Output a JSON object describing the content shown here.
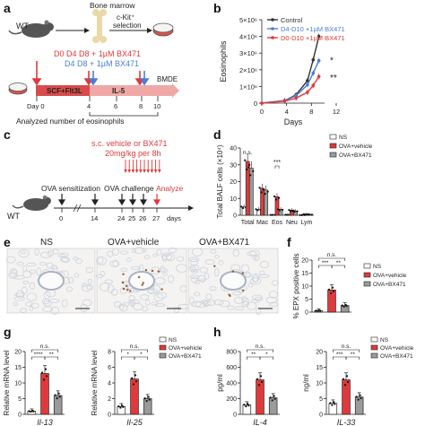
{
  "panels": {
    "a": {
      "label": "a",
      "mouse": "WT",
      "bone_marrow": "Bone marrow",
      "selection_line1": "c-Kit⁺",
      "selection_line2": "selection",
      "treatment_red": "D0 D4 D8 + 1µM BX471",
      "treatment_blue": "D4 D8 + 1µM BX471",
      "phase1": "SCF+Flt3L",
      "phase2": "IL-5",
      "bmde": "BMDE",
      "days": [
        "Day 0",
        "4",
        "6",
        "8",
        "10"
      ],
      "footer": "Analyzed number of eosinophils"
    },
    "b": {
      "label": "b"
    },
    "c": {
      "label": "c",
      "mouse": "WT",
      "injection_line1": "s.c. vehicle or BX471",
      "injection_line2": "20mg/kg per 8h",
      "sensitization": "OVA sensitization",
      "challenge": "OVA challenge",
      "analyze": "Analyze",
      "days": [
        "0",
        "14",
        "24",
        "25",
        "26",
        "27",
        "days"
      ]
    },
    "d": {
      "label": "d"
    },
    "e": {
      "label": "e",
      "titles": [
        "NS",
        "OVA+vehicle",
        "OVA+BX471"
      ],
      "colors": {
        "tissue": "#cdd3dc",
        "stain": "#9a5a35"
      }
    },
    "f": {
      "label": "f"
    },
    "g": {
      "label": "g"
    },
    "h": {
      "label": "h"
    }
  },
  "chart_data": [
    {
      "panel": "b",
      "type": "line",
      "xlabel": "Days",
      "ylabel": "Eosinophils",
      "xlim": [
        0,
        11
      ],
      "ylim": [
        0,
        5000000
      ],
      "xticks": [
        "0",
        "4",
        "8",
        "12"
      ],
      "yticks": [
        "0",
        "1×10⁶",
        "2×10⁶",
        "3×10⁶",
        "4×10⁶",
        "5×10⁶"
      ],
      "legend_position": "top-left",
      "series": [
        {
          "name": "Control",
          "color": "#333333",
          "x": [
            0,
            4,
            6,
            8,
            9,
            10
          ],
          "y": [
            0,
            150000,
            500000,
            1350000,
            2600000,
            4000000
          ]
        },
        {
          "name": "D4-D10 +1µM BX471",
          "color": "#4a7fd4",
          "x": [
            0,
            4,
            6,
            8,
            9,
            10
          ],
          "y": [
            0,
            150000,
            450000,
            1100000,
            1800000,
            2550000
          ]
        },
        {
          "name": "D0-D10 +1µM BX471",
          "color": "#e0393b",
          "x": [
            0,
            4,
            6,
            8,
            9,
            10
          ],
          "y": [
            0,
            120000,
            300000,
            650000,
            1050000,
            1600000
          ]
        }
      ],
      "annotations": [
        "*",
        "**"
      ]
    },
    {
      "panel": "d",
      "type": "bar",
      "ylabel": "Total BALF cells (×10⁴)",
      "ylim": [
        0,
        40
      ],
      "yticks": [
        "0",
        "10",
        "20",
        "30",
        "40"
      ],
      "categories": [
        "Total",
        "Mac",
        "Eos",
        "Neu",
        "Lym"
      ],
      "series": [
        {
          "name": "NS",
          "color": "#ffffff",
          "values": [
            5,
            3.5,
            0.2,
            0.3,
            0.1
          ]
        },
        {
          "name": "OVA+vehicle",
          "color": "#e0393b",
          "values": [
            32,
            16,
            11,
            3,
            0.6
          ]
        },
        {
          "name": "OVA+BX471",
          "color": "#9b9b9b",
          "values": [
            28,
            15,
            3.5,
            2.5,
            0.4
          ]
        }
      ],
      "annotations": [
        "n.s.",
        "***"
      ],
      "legend_position": "top-right"
    },
    {
      "panel": "f",
      "type": "bar",
      "ylabel": "% EPX positive cells",
      "ylim": [
        0,
        20
      ],
      "yticks": [
        "0",
        "5",
        "10",
        "15",
        "20"
      ],
      "categories": [
        "NS",
        "OVA+vehicle",
        "OVA+BX471"
      ],
      "values": [
        0.5,
        8.5,
        2.5
      ],
      "colors": [
        "#ffffff",
        "#e0393b",
        "#9b9b9b"
      ],
      "annotations": [
        "n.s.",
        "***",
        "**"
      ],
      "legend_position": "right"
    },
    {
      "panel": "g1",
      "type": "bar",
      "ylabel": "Relative mRNA level",
      "xlabel": "Il-13",
      "ylim": [
        0,
        20
      ],
      "yticks": [
        "0",
        "5",
        "10",
        "15",
        "20"
      ],
      "categories": [
        "NS",
        "OVA+vehicle",
        "OVA+BX471"
      ],
      "values": [
        1,
        13,
        6
      ],
      "colors": [
        "#ffffff",
        "#e0393b",
        "#9b9b9b"
      ],
      "annotations": [
        "n.s.",
        "****",
        "**"
      ]
    },
    {
      "panel": "g2",
      "type": "bar",
      "ylabel": "Relative mRNA level",
      "xlabel": "Il-25",
      "ylim": [
        0,
        8
      ],
      "yticks": [
        "0",
        "2",
        "4",
        "6",
        "8"
      ],
      "categories": [
        "NS",
        "OVA+vehicle",
        "OVA+BX471"
      ],
      "values": [
        1,
        4.5,
        2
      ],
      "colors": [
        "#ffffff",
        "#e0393b",
        "#9b9b9b"
      ],
      "annotations": [
        "n.s.",
        "*",
        "*"
      ],
      "legend": [
        "NS",
        "OVA+vehicle",
        "OVA+BX471"
      ]
    },
    {
      "panel": "h1",
      "type": "bar",
      "ylabel": "pg/ml",
      "xlabel": "IL-4",
      "ylim": [
        0,
        800
      ],
      "yticks": [
        "0",
        "200",
        "400",
        "600",
        "800"
      ],
      "categories": [
        "NS",
        "OVA+vehicle",
        "OVA+BX471"
      ],
      "values": [
        120,
        440,
        210
      ],
      "colors": [
        "#ffffff",
        "#e0393b",
        "#9b9b9b"
      ],
      "annotations": [
        "n.s.",
        "**",
        "*"
      ]
    },
    {
      "panel": "h2",
      "type": "bar",
      "ylabel": "ng/ml",
      "xlabel": "IL-33",
      "ylim": [
        0,
        20
      ],
      "yticks": [
        "0",
        "5",
        "10",
        "15",
        "20"
      ],
      "categories": [
        "NS",
        "OVA+vehicle",
        "OVA+BX471"
      ],
      "values": [
        3.5,
        11,
        5.5
      ],
      "colors": [
        "#ffffff",
        "#e0393b",
        "#9b9b9b"
      ],
      "annotations": [
        "n.s.",
        "***",
        "**"
      ],
      "legend": [
        "NS",
        "OVA+vehicle",
        "OVA+BX471"
      ]
    }
  ]
}
